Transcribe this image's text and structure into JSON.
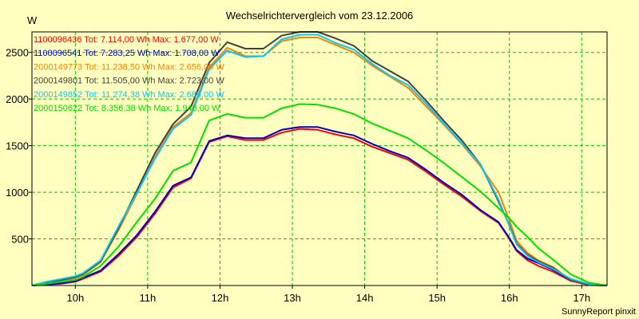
{
  "chart_data": {
    "type": "line",
    "title": "Wechselrichtervergleich vom 23.12.2006",
    "ylabel": "W",
    "xlabel": "",
    "x_ticks": [
      "10h",
      "11h",
      "12h",
      "13h",
      "14h",
      "15h",
      "16h",
      "17h"
    ],
    "y_ticks": [
      500,
      1000,
      1500,
      2000,
      2500
    ],
    "xlim": [
      9.4,
      17.35
    ],
    "ylim": [
      0,
      2720
    ],
    "grid": true,
    "legend_position": "top-left",
    "x": [
      9.4,
      9.6,
      9.8,
      10.0,
      10.1,
      10.35,
      10.6,
      10.85,
      11.1,
      11.35,
      11.6,
      11.85,
      12.1,
      12.35,
      12.6,
      12.85,
      13.1,
      13.35,
      13.6,
      13.85,
      14.1,
      14.35,
      14.6,
      14.85,
      15.1,
      15.35,
      15.6,
      15.85,
      16.0,
      16.1,
      16.25,
      16.4,
      16.6,
      16.85,
      17.1,
      17.35
    ],
    "series": [
      {
        "name": "1100096436",
        "label": "1100096436 Tot: 7.114,00 Wh Max: 1.677,00 W",
        "color": "#ff0000",
        "values": [
          0,
          10,
          20,
          40,
          70,
          150,
          320,
          520,
          770,
          1050,
          1150,
          1540,
          1600,
          1560,
          1560,
          1640,
          1680,
          1670,
          1620,
          1580,
          1490,
          1420,
          1350,
          1220,
          1080,
          950,
          800,
          670,
          500,
          370,
          270,
          210,
          150,
          50,
          5,
          0
        ]
      },
      {
        "name": "1100096541",
        "label": "1100096541 Tot: 7.283,25 Wh Max: 1.708,00 W",
        "color": "#0000c8",
        "values": [
          0,
          12,
          22,
          45,
          80,
          160,
          340,
          540,
          790,
          1070,
          1160,
          1550,
          1610,
          1580,
          1580,
          1670,
          1700,
          1700,
          1650,
          1610,
          1520,
          1440,
          1370,
          1240,
          1100,
          970,
          810,
          680,
          510,
          380,
          290,
          240,
          170,
          60,
          10,
          0
        ]
      },
      {
        "name": "2000149773",
        "label": "2000149773 Tot: 11.238,50 Wh Max: 2.656,00 W",
        "color": "#ff8000",
        "values": [
          0,
          30,
          50,
          80,
          110,
          250,
          600,
          980,
          1380,
          1700,
          1850,
          2340,
          2550,
          2460,
          2460,
          2620,
          2660,
          2660,
          2580,
          2500,
          2360,
          2240,
          2120,
          1920,
          1720,
          1510,
          1280,
          1000,
          700,
          480,
          350,
          270,
          200,
          60,
          10,
          0
        ]
      },
      {
        "name": "2000149801",
        "label": "2000149801 Tot: 11.505,00 Wh Max: 2.723,00 W",
        "color": "#404040",
        "values": [
          0,
          35,
          60,
          90,
          120,
          260,
          620,
          1020,
          1420,
          1730,
          1920,
          2390,
          2610,
          2540,
          2540,
          2680,
          2720,
          2720,
          2650,
          2570,
          2410,
          2300,
          2190,
          1980,
          1760,
          1550,
          1300,
          900,
          650,
          450,
          330,
          260,
          190,
          60,
          10,
          0
        ]
      },
      {
        "name": "2000149852",
        "label": "2000149852 Tot: 11.274,38 Wh Max: 2.689,00 W",
        "color": "#00c8ff",
        "values": [
          0,
          40,
          70,
          100,
          130,
          270,
          640,
          990,
          1360,
          1680,
          1830,
          2320,
          2520,
          2450,
          2460,
          2640,
          2690,
          2690,
          2600,
          2530,
          2380,
          2250,
          2150,
          1950,
          1730,
          1520,
          1300,
          920,
          640,
          440,
          320,
          250,
          180,
          70,
          15,
          0
        ]
      },
      {
        "name": "2000150622",
        "label": "2000150622 Tot: 8.356,38 Wh Max: 1.946,00 W",
        "color": "#00e000",
        "values": [
          0,
          20,
          40,
          60,
          90,
          210,
          420,
          680,
          930,
          1230,
          1320,
          1770,
          1840,
          1800,
          1800,
          1900,
          1946,
          1940,
          1900,
          1840,
          1740,
          1660,
          1580,
          1450,
          1310,
          1160,
          1010,
          830,
          720,
          630,
          520,
          400,
          280,
          120,
          30,
          0
        ]
      }
    ]
  },
  "footer": "SunnyReport pinxit"
}
